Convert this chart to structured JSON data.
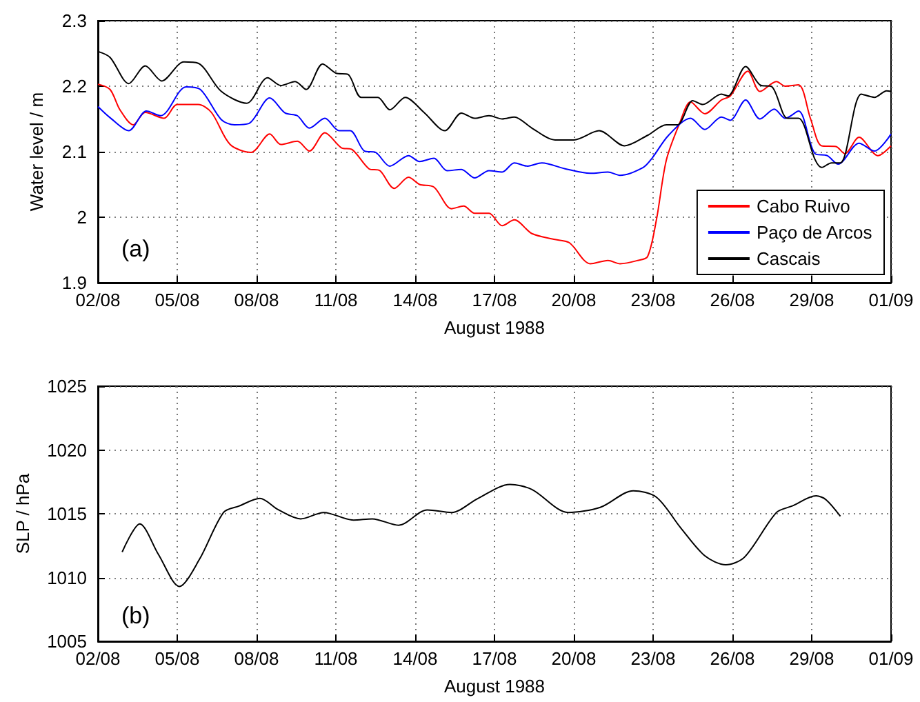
{
  "chart_data": [
    {
      "type": "line",
      "xlabel": "August 1988",
      "ylabel": "Water level / m",
      "annotations": [
        "(a)"
      ],
      "legend": "bottom right",
      "grid": true,
      "line_style": "solid",
      "marker": "none",
      "xlim": [
        "1988-08-02",
        "1988-09-01"
      ],
      "xticks": [
        {
          "value": "1988-08-02",
          "label": "02/08"
        },
        {
          "value": "1988-08-05",
          "label": "05/08"
        },
        {
          "value": "1988-08-08",
          "label": "08/08"
        },
        {
          "value": "1988-08-11",
          "label": "11/08"
        },
        {
          "value": "1988-08-14",
          "label": "14/08"
        },
        {
          "value": "1988-08-17",
          "label": "17/08"
        },
        {
          "value": "1988-08-20",
          "label": "20/08"
        },
        {
          "value": "1988-08-23",
          "label": "23/08"
        },
        {
          "value": "1988-08-26",
          "label": "26/08"
        },
        {
          "value": "1988-08-29",
          "label": "29/08"
        },
        {
          "value": "1988-09-01",
          "label": "01/09"
        }
      ],
      "ylim": [
        1.9,
        2.3
      ],
      "yticks": [
        1.9,
        2,
        2.1,
        2.2,
        2.3
      ],
      "series": [
        {
          "name": "Cabo Ruivo",
          "color": "#ff0000",
          "x": [
            "1988-08-02T00:00",
            "1988-08-02T11:00",
            "1988-08-02T20:00",
            "1988-08-03T08:00",
            "1988-08-03T19:00",
            "1988-08-04T12:00",
            "1988-08-05T00:00",
            "1988-08-05T19:00",
            "1988-08-06T07:00",
            "1988-08-07T00:00",
            "1988-08-07T19:00",
            "1988-08-08T12:00",
            "1988-08-08T22:00",
            "1988-08-09T13:00",
            "1988-08-10T00:00",
            "1988-08-10T14:00",
            "1988-08-11T05:00",
            "1988-08-11T15:00",
            "1988-08-12T06:00",
            "1988-08-12T16:00",
            "1988-08-13T05:00",
            "1988-08-13T18:00",
            "1988-08-14T04:00",
            "1988-08-14T17:00",
            "1988-08-15T09:00",
            "1988-08-15T20:00",
            "1988-08-16T06:00",
            "1988-08-16T19:00",
            "1988-08-17T07:00",
            "1988-08-17T18:00",
            "1988-08-18T10:00",
            "1988-08-19T07:00",
            "1988-08-19T20:00",
            "1988-08-20T15:00",
            "1988-08-21T07:00",
            "1988-08-21T18:00",
            "1988-08-22T10:00",
            "1988-08-22T19:00",
            "1988-08-23T03:00",
            "1988-08-23T12:00",
            "1988-08-24T00:00",
            "1988-08-24T10:00",
            "1988-08-24T23:00",
            "1988-08-25T14:00",
            "1988-08-25T22:00",
            "1988-08-26T14:00",
            "1988-08-27T01:00",
            "1988-08-27T16:00",
            "1988-08-28T00:00",
            "1988-08-28T12:00",
            "1988-08-28T23:00",
            "1988-08-29T09:00",
            "1988-08-29T22:00",
            "1988-08-30T06:00",
            "1988-08-30T19:00",
            "1988-08-31T12:00",
            "1988-09-01T00:00"
          ],
          "values": [
            2.203,
            2.195,
            2.164,
            2.141,
            2.16,
            2.151,
            2.172,
            2.172,
            2.16,
            2.111,
            2.099,
            2.127,
            2.111,
            2.116,
            2.101,
            2.129,
            2.106,
            2.103,
            2.074,
            2.071,
            2.044,
            2.061,
            2.05,
            2.046,
            2.013,
            2.017,
            2.006,
            2.006,
            1.987,
            1.996,
            1.975,
            1.966,
            1.961,
            1.929,
            1.934,
            1.929,
            1.934,
            1.94,
            1.996,
            2.087,
            2.143,
            2.176,
            2.158,
            2.179,
            2.185,
            2.223,
            2.192,
            2.207,
            2.2,
            2.202,
            2.15,
            2.109,
            2.108,
            2.097,
            2.122,
            2.094,
            2.109
          ]
        },
        {
          "name": "Paço de Arcos",
          "color": "#0000ff",
          "x": [
            "1988-08-02T00:00",
            "1988-08-02T11:00",
            "1988-08-03T04:00",
            "1988-08-03T20:00",
            "1988-08-04T09:00",
            "1988-08-05T08:00",
            "1988-08-05T21:00",
            "1988-08-06T16:00",
            "1988-08-07T04:00",
            "1988-08-07T17:00",
            "1988-08-08T12:00",
            "1988-08-09T02:00",
            "1988-08-09T13:00",
            "1988-08-10T00:00",
            "1988-08-10T14:00",
            "1988-08-11T03:00",
            "1988-08-11T13:00",
            "1988-08-12T02:00",
            "1988-08-12T12:00",
            "1988-08-13T01:00",
            "1988-08-13T18:00",
            "1988-08-14T04:00",
            "1988-08-14T17:00",
            "1988-08-15T05:00",
            "1988-08-15T18:00",
            "1988-08-16T06:00",
            "1988-08-16T19:00",
            "1988-08-17T07:00",
            "1988-08-17T18:00",
            "1988-08-18T06:00",
            "1988-08-18T19:00",
            "1988-08-19T16:00",
            "1988-08-20T15:00",
            "1988-08-21T07:00",
            "1988-08-21T18:00",
            "1988-08-22T15:00",
            "1988-08-22T23:00",
            "1988-08-23T14:00",
            "1988-08-24T10:00",
            "1988-08-24T23:00",
            "1988-08-25T14:00",
            "1988-08-25T22:00",
            "1988-08-26T12:00",
            "1988-08-27T01:00",
            "1988-08-27T14:00",
            "1988-08-28T00:00",
            "1988-08-28T12:00",
            "1988-08-29T03:00",
            "1988-08-29T14:00",
            "1988-08-30T00:00",
            "1988-08-30T19:00",
            "1988-08-31T09:00",
            "1988-09-01T00:00"
          ],
          "values": [
            2.169,
            2.152,
            2.132,
            2.162,
            2.155,
            2.199,
            2.195,
            2.149,
            2.141,
            2.143,
            2.182,
            2.159,
            2.155,
            2.136,
            2.151,
            2.132,
            2.132,
            2.101,
            2.099,
            2.078,
            2.094,
            2.085,
            2.09,
            2.071,
            2.073,
            2.06,
            2.071,
            2.069,
            2.083,
            2.078,
            2.083,
            2.074,
            2.067,
            2.069,
            2.064,
            2.076,
            2.09,
            2.125,
            2.151,
            2.134,
            2.153,
            2.148,
            2.179,
            2.15,
            2.165,
            2.151,
            2.162,
            2.097,
            2.094,
            2.081,
            2.113,
            2.101,
            2.127
          ]
        },
        {
          "name": "Cascais",
          "color": "#000000",
          "x": [
            "1988-08-02T00:00",
            "1988-08-02T11:00",
            "1988-08-03T04:00",
            "1988-08-03T19:00",
            "1988-08-04T10:00",
            "1988-08-05T06:00",
            "1988-08-05T19:00",
            "1988-08-06T16:00",
            "1988-08-07T15:00",
            "1988-08-08T10:00",
            "1988-08-08T22:00",
            "1988-08-09T11:00",
            "1988-08-09T21:00",
            "1988-08-10T12:00",
            "1988-08-11T00:00",
            "1988-08-11T11:00",
            "1988-08-11T23:00",
            "1988-08-12T14:00",
            "1988-08-13T01:00",
            "1988-08-13T15:00",
            "1988-08-14T08:00",
            "1988-08-15T03:00",
            "1988-08-15T18:00",
            "1988-08-16T06:00",
            "1988-08-16T19:00",
            "1988-08-17T07:00",
            "1988-08-17T18:00",
            "1988-08-18T10:00",
            "1988-08-19T07:00",
            "1988-08-20T00:00",
            "1988-08-20T23:00",
            "1988-08-21T22:00",
            "1988-08-22T19:00",
            "1988-08-23T12:00",
            "1988-08-23T22:00",
            "1988-08-24T12:00",
            "1988-08-24T21:00",
            "1988-08-25T14:00",
            "1988-08-25T20:00",
            "1988-08-26T12:00",
            "1988-08-27T01:00",
            "1988-08-27T12:00",
            "1988-08-28T02:00",
            "1988-08-28T12:00",
            "1988-08-29T03:00",
            "1988-08-29T09:00",
            "1988-08-29T18:00",
            "1988-08-30T02:00",
            "1988-08-30T21:00",
            "1988-08-31T09:00",
            "1988-08-31T20:00",
            "1988-09-01T00:00"
          ],
          "values": [
            2.253,
            2.244,
            2.204,
            2.231,
            2.208,
            2.237,
            2.235,
            2.192,
            2.174,
            2.213,
            2.201,
            2.207,
            2.195,
            2.234,
            2.22,
            2.218,
            2.183,
            2.183,
            2.164,
            2.183,
            2.16,
            2.132,
            2.159,
            2.151,
            2.155,
            2.15,
            2.153,
            2.136,
            2.118,
            2.118,
            2.132,
            2.109,
            2.125,
            2.141,
            2.141,
            2.178,
            2.172,
            2.188,
            2.185,
            2.23,
            2.202,
            2.199,
            2.151,
            2.151,
            2.088,
            2.076,
            2.083,
            2.083,
            2.188,
            2.183,
            2.193,
            2.192
          ]
        }
      ]
    },
    {
      "type": "line",
      "xlabel": "August 1988",
      "ylabel": "SLP / hPa",
      "annotations": [
        "(b)"
      ],
      "grid": true,
      "line_style": "solid",
      "marker": "none",
      "xlim": [
        "1988-08-02",
        "1988-09-01"
      ],
      "xticks": [
        {
          "value": "1988-08-02",
          "label": "02/08"
        },
        {
          "value": "1988-08-05",
          "label": "05/08"
        },
        {
          "value": "1988-08-08",
          "label": "08/08"
        },
        {
          "value": "1988-08-11",
          "label": "11/08"
        },
        {
          "value": "1988-08-14",
          "label": "14/08"
        },
        {
          "value": "1988-08-17",
          "label": "17/08"
        },
        {
          "value": "1988-08-20",
          "label": "20/08"
        },
        {
          "value": "1988-08-23",
          "label": "23/08"
        },
        {
          "value": "1988-08-26",
          "label": "26/08"
        },
        {
          "value": "1988-08-29",
          "label": "29/08"
        },
        {
          "value": "1988-09-01",
          "label": "01/09"
        }
      ],
      "ylim": [
        1005,
        1025
      ],
      "yticks": [
        1005,
        1010,
        1015,
        1020,
        1025
      ],
      "series": [
        {
          "color": "#000000",
          "x": [
            "1988-08-02T22:00",
            "1988-08-03T14:00",
            "1988-08-04T07:00",
            "1988-08-05T02:00",
            "1988-08-05T20:00",
            "1988-08-06T18:00",
            "1988-08-07T08:00",
            "1988-08-08T03:00",
            "1988-08-08T20:00",
            "1988-08-09T16:00",
            "1988-08-10T13:00",
            "1988-08-11T16:00",
            "1988-08-12T09:00",
            "1988-08-13T09:00",
            "1988-08-14T11:00",
            "1988-08-15T09:00",
            "1988-08-16T09:00",
            "1988-08-17T14:00",
            "1988-08-18T10:00",
            "1988-08-19T19:00",
            "1988-08-21T00:00",
            "1988-08-22T06:00",
            "1988-08-23T03:00",
            "1988-08-24T01:00",
            "1988-08-24T23:00",
            "1988-08-25T18:00",
            "1988-08-26T11:00",
            "1988-08-27T16:00",
            "1988-08-28T06:00",
            "1988-08-29T04:00",
            "1988-08-29T13:00",
            "1988-08-30T02:00"
          ],
          "values": [
            1012.0,
            1014.2,
            1011.8,
            1009.3,
            1011.4,
            1015.1,
            1015.6,
            1016.2,
            1015.3,
            1014.6,
            1015.1,
            1014.5,
            1014.6,
            1014.1,
            1015.3,
            1015.1,
            1016.2,
            1017.3,
            1016.9,
            1015.1,
            1015.5,
            1016.8,
            1016.3,
            1013.9,
            1011.7,
            1011.0,
            1011.6,
            1015.1,
            1015.6,
            1016.4,
            1016.1,
            1014.8
          ]
        }
      ]
    }
  ]
}
